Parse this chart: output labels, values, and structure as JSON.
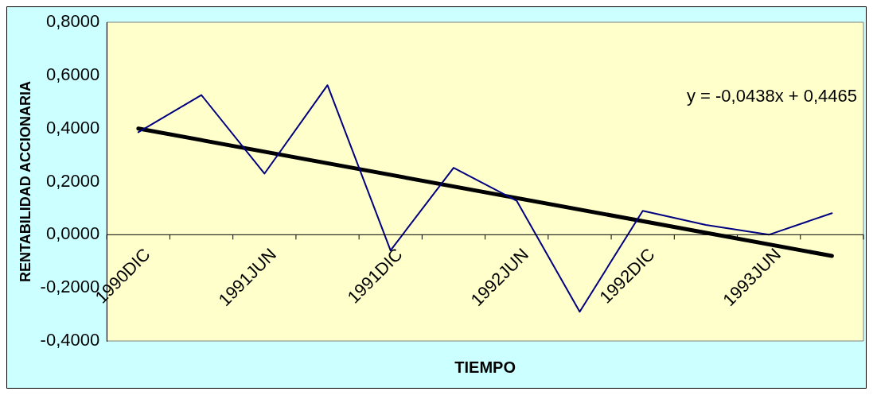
{
  "chart_data": {
    "type": "line",
    "xlabel": "TIEMPO",
    "ylabel": "RENTABILIDAD ACCIONARIA",
    "categories": [
      "1990DIC",
      null,
      "1991JUN",
      null,
      "1991DIC",
      null,
      "1992JUN",
      null,
      "1992DIC",
      null,
      "1993JUN",
      null
    ],
    "series": [
      {
        "color": "#000080",
        "values": [
          0.386,
          0.526,
          0.23,
          0.563,
          -0.059,
          0.252,
          0.128,
          -0.29,
          0.09,
          0.037,
          0.0,
          0.081
        ]
      },
      {
        "type": "line",
        "color": "#000000",
        "values": [
          0.4,
          null,
          null,
          null,
          null,
          null,
          null,
          null,
          null,
          null,
          null,
          -0.08
        ]
      }
    ],
    "ylim": [
      -0.4,
      0.8
    ],
    "yticks": [
      {
        "value": -0.4,
        "label": "-0,4000"
      },
      {
        "value": -0.2,
        "label": "-0,2000"
      },
      {
        "value": 0,
        "label": "0,0000"
      },
      {
        "value": 0.2,
        "label": "0,2000"
      },
      {
        "value": 0.4,
        "label": "0,4000"
      },
      {
        "value": 0.6,
        "label": "0,6000"
      },
      {
        "value": 0.8,
        "label": "0,8000"
      }
    ],
    "annotations": [
      "y = -0,0438x + 0,4465"
    ],
    "grid": false,
    "legend": false,
    "marker": "none"
  }
}
